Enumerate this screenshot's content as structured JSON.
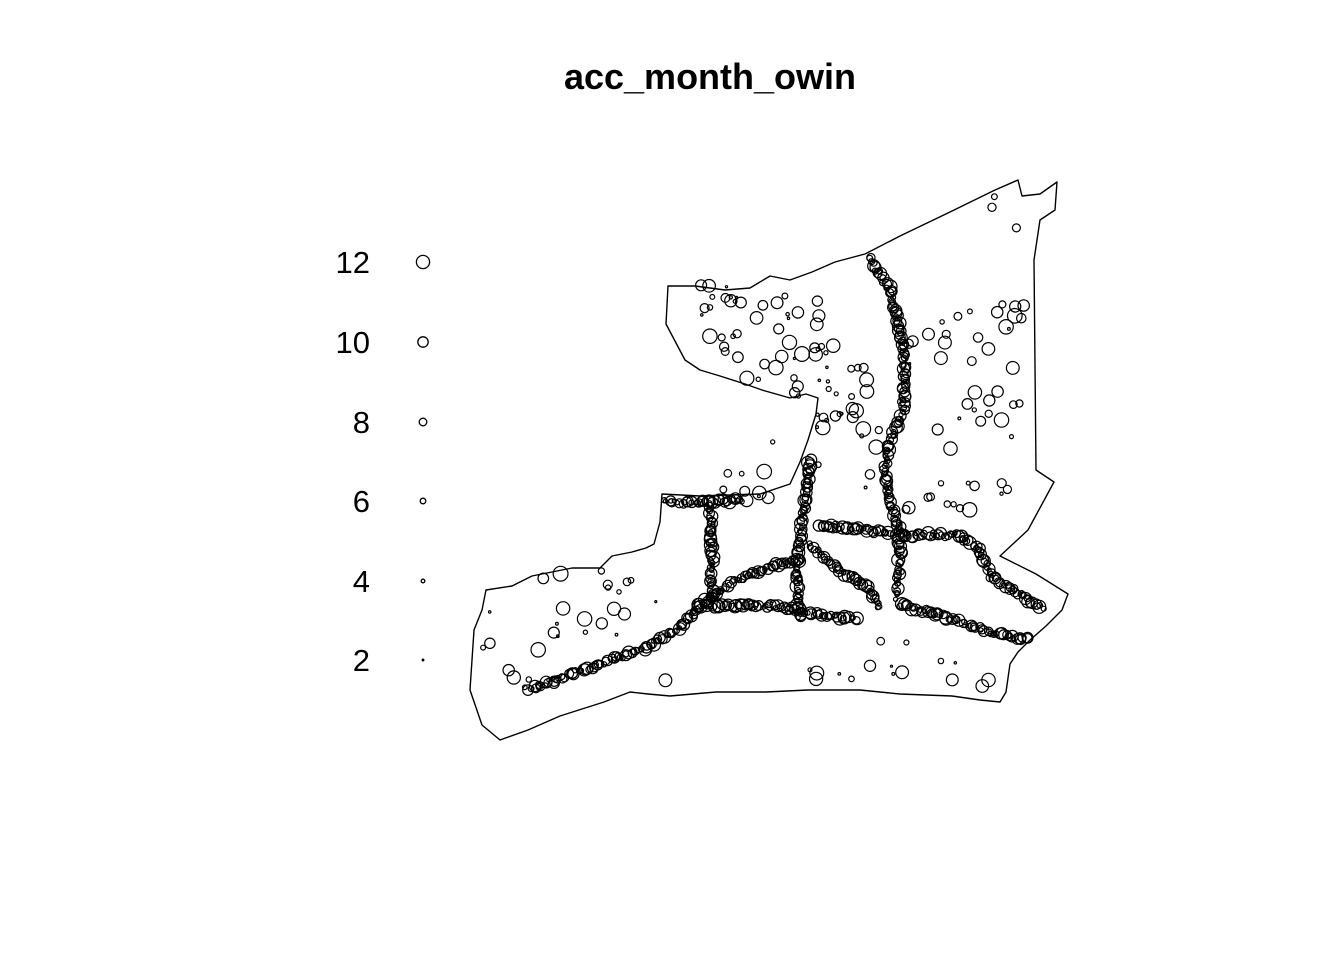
{
  "chart_data": {
    "type": "scatter",
    "title": "acc_month_owin",
    "legend_placement": "left",
    "legend_values": [
      "2",
      "4",
      "6",
      "8",
      "10",
      "12"
    ],
    "mark_style": {
      "stroke": "#000000",
      "fill": "none"
    },
    "observation_window": {
      "shape": "irregular polygon",
      "outline_color": "#000000"
    },
    "points_note": "marks sized by value; dense chains of marks trace road corridors"
  }
}
